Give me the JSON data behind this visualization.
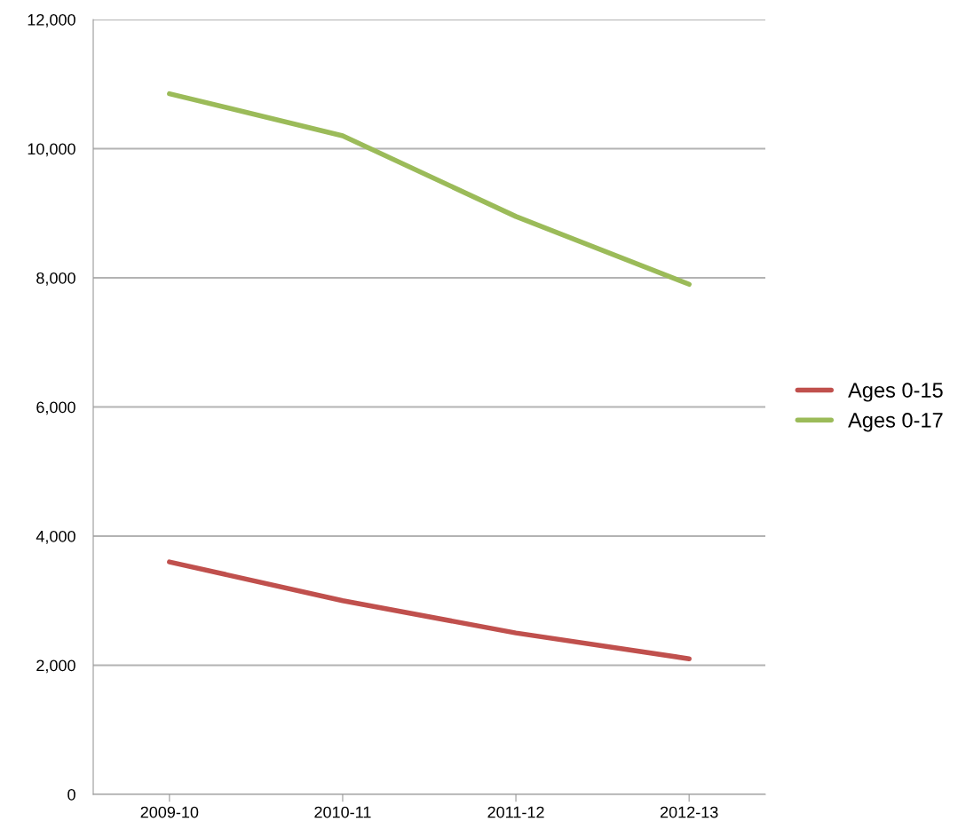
{
  "chart_data": {
    "type": "line",
    "categories": [
      "2009-10",
      "2010-11",
      "2011-12",
      "2012-13"
    ],
    "series": [
      {
        "name": "Ages 0-15",
        "color": "#c0504d",
        "values": [
          3600,
          3000,
          2500,
          2100
        ]
      },
      {
        "name": "Ages 0-17",
        "color": "#9bbb59",
        "values": [
          10850,
          10200,
          8950,
          7900
        ]
      }
    ],
    "ylim": [
      0,
      12000
    ],
    "yticks": [
      {
        "value": 0,
        "label": "0"
      },
      {
        "value": 2000,
        "label": "2,000"
      },
      {
        "value": 4000,
        "label": "4,000"
      },
      {
        "value": 6000,
        "label": "6,000"
      },
      {
        "value": 8000,
        "label": "8,000"
      },
      {
        "value": 10000,
        "label": "10,000"
      },
      {
        "value": 12000,
        "label": "12,000"
      }
    ],
    "grid": "y",
    "legend": "right",
    "marker": "none",
    "line_style": "solid"
  }
}
